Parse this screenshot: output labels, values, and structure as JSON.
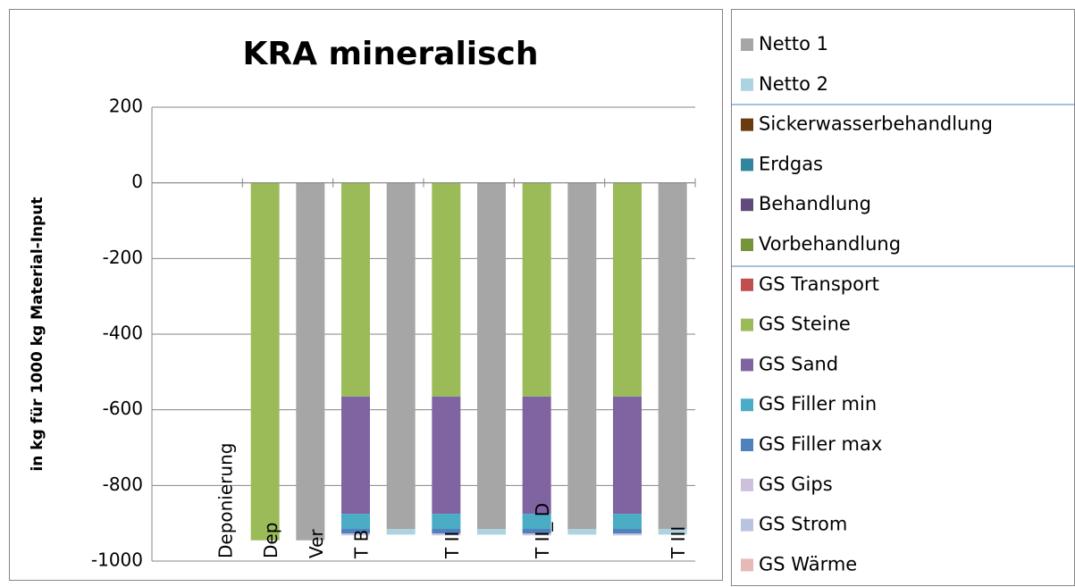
{
  "chart_data": {
    "type": "stacked_bar",
    "title": "KRA mineralisch",
    "y_label": "in kg  für 1000 kg Material-Input",
    "categories": [
      null,
      "Deponierung",
      "Dep",
      "Ver",
      "T B",
      null,
      "T II",
      null,
      "T II_ D",
      null,
      null,
      "T III"
    ],
    "ylim": [
      -1000,
      200
    ],
    "yticks": [
      -1000,
      -800,
      -600,
      -400,
      -200,
      0,
      200
    ],
    "grid": true,
    "series": [
      {
        "name": "Netto 1",
        "color": "#a6a6a6",
        "values": [
          null,
          null,
          null,
          -945,
          null,
          -915,
          null,
          -915,
          null,
          -915,
          null,
          -915
        ]
      },
      {
        "name": "Netto 2",
        "color": "#add3e0",
        "values": [
          null,
          null,
          null,
          null,
          null,
          -15,
          null,
          -15,
          null,
          -15,
          null,
          -15
        ]
      },
      {
        "name": "Sickerwasserbehandlung",
        "color": "#6b3a0e",
        "values": [
          null,
          null,
          null,
          null,
          null,
          null,
          null,
          null,
          null,
          null,
          null,
          null
        ]
      },
      {
        "name": "Erdgas",
        "color": "#31859c",
        "values": [
          null,
          null,
          null,
          null,
          null,
          null,
          null,
          null,
          null,
          null,
          null,
          null
        ]
      },
      {
        "name": "Behandlung",
        "color": "#604a7b",
        "values": [
          null,
          null,
          null,
          null,
          null,
          null,
          null,
          null,
          null,
          null,
          null,
          null
        ]
      },
      {
        "name": "Vorbehandlung",
        "color": "#77933c",
        "values": [
          null,
          null,
          null,
          null,
          null,
          null,
          null,
          null,
          null,
          null,
          null,
          null
        ]
      },
      {
        "name": "GS Transport",
        "color": "#c0504d",
        "values": [
          null,
          null,
          null,
          null,
          null,
          null,
          null,
          null,
          null,
          null,
          null,
          null
        ]
      },
      {
        "name": "GS Steine",
        "color": "#9bbb59",
        "values": [
          null,
          null,
          -945,
          null,
          -565,
          null,
          -565,
          null,
          -565,
          null,
          -565,
          null
        ]
      },
      {
        "name": "GS Sand",
        "color": "#8064a2",
        "values": [
          null,
          null,
          null,
          null,
          -310,
          null,
          -310,
          null,
          -310,
          null,
          -310,
          null
        ]
      },
      {
        "name": "GS Filler min",
        "color": "#4bacc6",
        "values": [
          null,
          null,
          null,
          null,
          -40,
          null,
          -40,
          null,
          -40,
          null,
          -40,
          null
        ]
      },
      {
        "name": "GS Filler max",
        "color": "#4f81bd",
        "values": [
          null,
          null,
          null,
          null,
          -12,
          null,
          -12,
          null,
          -12,
          null,
          -12,
          null
        ]
      },
      {
        "name": "GS Gips",
        "color": "#ccc0da",
        "values": [
          null,
          null,
          null,
          null,
          -5,
          null,
          -5,
          null,
          -5,
          null,
          -5,
          null
        ]
      },
      {
        "name": "GS Strom",
        "color": "#b9c3e0",
        "values": [
          null,
          null,
          null,
          null,
          null,
          null,
          null,
          null,
          null,
          null,
          null,
          null
        ]
      },
      {
        "name": "GS Wärme",
        "color": "#e6b9b8",
        "values": [
          null,
          null,
          null,
          null,
          null,
          null,
          null,
          null,
          null,
          null,
          null,
          null
        ]
      }
    ]
  }
}
